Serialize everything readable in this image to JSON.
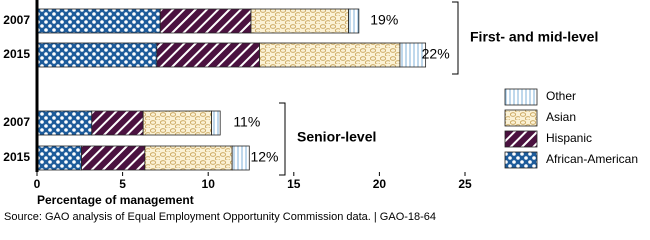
{
  "chart_data": {
    "type": "stacked-bar-horizontal",
    "categories": [
      "2007",
      "2015",
      "2007",
      "2015"
    ],
    "groups": [
      "First- and mid-level",
      "Senior-level"
    ],
    "series": [
      {
        "name": "African-American",
        "color": "#1d5b9a",
        "pattern": "dots",
        "values": [
          7.2,
          7.0,
          3.2,
          2.6
        ]
      },
      {
        "name": "Hispanic",
        "color": "#4b1240",
        "pattern": "stripes",
        "values": [
          5.3,
          6.0,
          3.0,
          3.7
        ]
      },
      {
        "name": "Asian",
        "color": "#fbf2d6",
        "pattern": "ovals",
        "values": [
          5.7,
          8.2,
          4.0,
          5.1
        ]
      },
      {
        "name": "Other",
        "color": "#ffffff",
        "pattern": "vlines",
        "values": [
          0.6,
          1.5,
          0.5,
          1.0
        ]
      }
    ],
    "totals": [
      19,
      22,
      11,
      12
    ],
    "total_labels": [
      "19%",
      "22%",
      "11%",
      "12%"
    ],
    "xlabel": "Percentage of management",
    "xlim": [
      0,
      25
    ],
    "xticks": [
      0,
      5,
      10,
      15,
      20,
      25
    ],
    "source": "Source: GAO analysis of Equal Employment Opportunity Commission data.  |  GAO-18-64"
  }
}
